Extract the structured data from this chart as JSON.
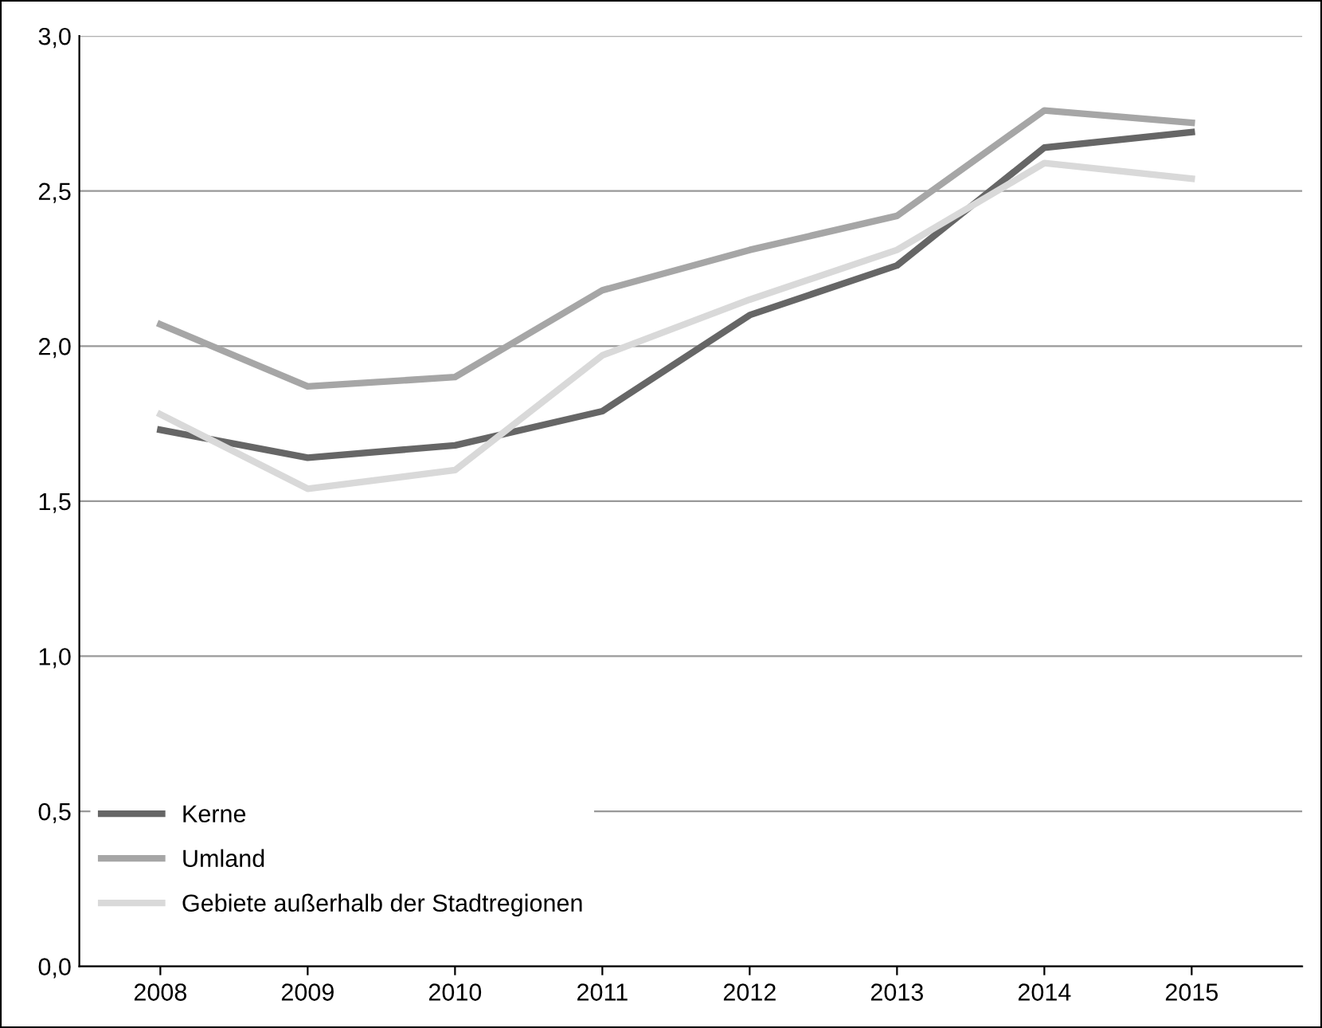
{
  "chart_data": {
    "type": "line",
    "categories": [
      "2008",
      "2009",
      "2010",
      "2011",
      "2012",
      "2013",
      "2014",
      "2015"
    ],
    "series": [
      {
        "name": "Kerne",
        "color": "#666666",
        "values": [
          1.73,
          1.64,
          1.68,
          1.79,
          2.1,
          2.26,
          2.64,
          2.69
        ]
      },
      {
        "name": "Umland",
        "color": "#a6a6a6",
        "values": [
          2.07,
          1.87,
          1.9,
          2.18,
          2.31,
          2.42,
          2.76,
          2.72
        ]
      },
      {
        "name": "Gebiete außerhalb der Stadtregionen",
        "color": "#d9d9d9",
        "values": [
          1.78,
          1.54,
          1.6,
          1.97,
          2.15,
          2.31,
          2.59,
          2.54
        ]
      }
    ],
    "ylim": [
      0,
      3
    ],
    "yticks": [
      {
        "value": 0,
        "label": "0,0"
      },
      {
        "value": 0.5,
        "label": "0,5"
      },
      {
        "value": 1,
        "label": "1,0"
      },
      {
        "value": 1.5,
        "label": "1,5"
      },
      {
        "value": 2,
        "label": "2,0"
      },
      {
        "value": 2.5,
        "label": "2,5"
      },
      {
        "value": 3,
        "label": "3,0"
      }
    ],
    "grid": "y",
    "legend": "bottom left",
    "marker": "none",
    "line_style": "solid"
  }
}
